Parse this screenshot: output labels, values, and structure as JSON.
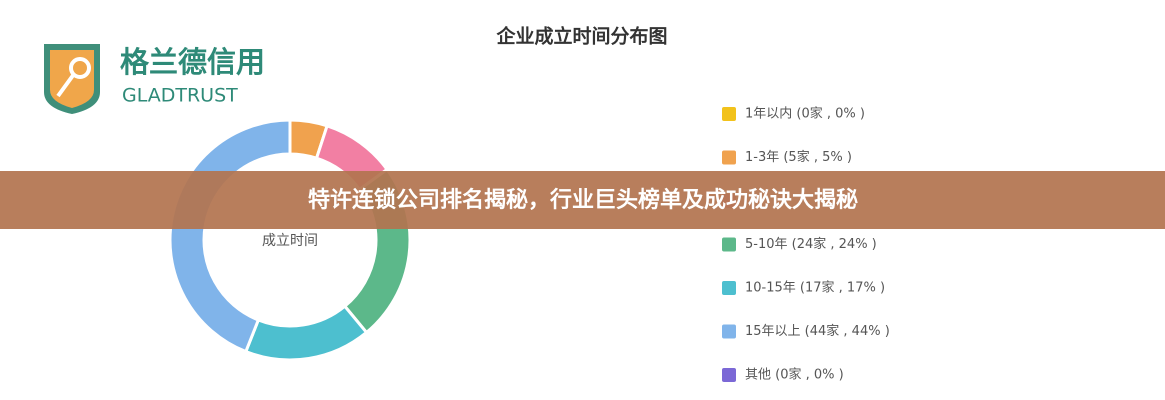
{
  "logo": {
    "name": "格兰德信用",
    "sub": "GLADTRUST"
  },
  "banner": {
    "title": "特许连锁公司排名揭秘，行业巨头榜单及成功秘诀大揭秘"
  },
  "chart_data": {
    "type": "pie",
    "title": "企业成立时间分布图",
    "center_label": "成立时间",
    "categories": [
      "1年以内 (0家 , 0% )",
      "1-3年 (5家 , 5% )",
      null,
      "5-10年 (24家 , 24% )",
      "10-15年 (17家 , 17% )",
      "15年以上 (44家 , 44% )",
      "其他 (0家 , 0% )"
    ],
    "values": [
      0,
      5,
      10,
      24,
      17,
      44,
      0
    ],
    "colors": [
      "#f2c21b",
      "#f0a24e",
      "#f27fa3",
      "#5cb88a",
      "#4dbfcf",
      "#80b4ea",
      "#7b68d6"
    ]
  }
}
